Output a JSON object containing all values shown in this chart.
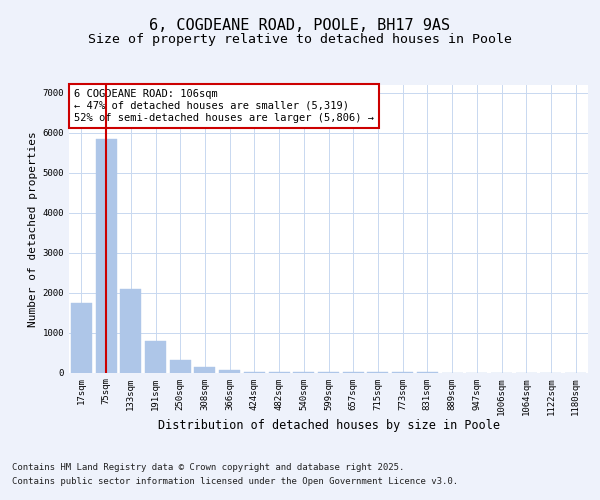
{
  "title": "6, COGDEANE ROAD, POOLE, BH17 9AS",
  "subtitle": "Size of property relative to detached houses in Poole",
  "xlabel": "Distribution of detached houses by size in Poole",
  "ylabel": "Number of detached properties",
  "categories": [
    "17sqm",
    "75sqm",
    "133sqm",
    "191sqm",
    "250sqm",
    "308sqm",
    "366sqm",
    "424sqm",
    "482sqm",
    "540sqm",
    "599sqm",
    "657sqm",
    "715sqm",
    "773sqm",
    "831sqm",
    "889sqm",
    "947sqm",
    "1006sqm",
    "1064sqm",
    "1122sqm",
    "1180sqm"
  ],
  "values": [
    1750,
    5850,
    2100,
    800,
    310,
    130,
    60,
    20,
    10,
    5,
    3,
    2,
    1,
    1,
    1,
    0,
    0,
    0,
    0,
    0,
    0
  ],
  "bar_color": "#aec6e8",
  "bar_edge_color": "#aec6e8",
  "vline_x": 1,
  "vline_color": "#cc0000",
  "annotation_text": "6 COGDEANE ROAD: 106sqm\n← 47% of detached houses are smaller (5,319)\n52% of semi-detached houses are larger (5,806) →",
  "annotation_fontsize": 7.5,
  "ylim": [
    0,
    7200
  ],
  "yticks": [
    0,
    1000,
    2000,
    3000,
    4000,
    5000,
    6000,
    7000
  ],
  "background_color": "#eef2fb",
  "plot_background": "#ffffff",
  "grid_color": "#c8d8f0",
  "footer_line1": "Contains HM Land Registry data © Crown copyright and database right 2025.",
  "footer_line2": "Contains public sector information licensed under the Open Government Licence v3.0.",
  "title_fontsize": 11,
  "subtitle_fontsize": 9.5,
  "xlabel_fontsize": 8.5,
  "ylabel_fontsize": 8,
  "tick_fontsize": 6.5,
  "footer_fontsize": 6.5
}
